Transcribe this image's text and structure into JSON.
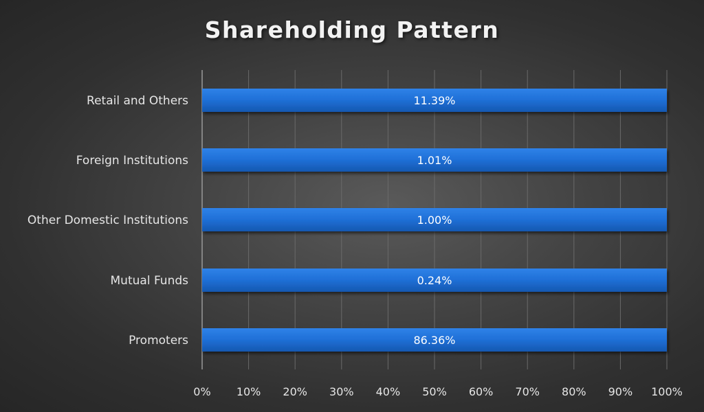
{
  "chart_data": {
    "type": "bar",
    "orientation": "horizontal",
    "stacked": "100%",
    "title": "Shareholding Pattern",
    "categories": [
      "Promoters",
      "Mutual Funds",
      "Other Domestic Institutions",
      "Foreign Institutions",
      "Retail and Others"
    ],
    "values": [
      86.36,
      0.24,
      1.0,
      1.01,
      11.39
    ],
    "data_labels": [
      "86.36%",
      "0.24%",
      "1.00%",
      "1.01%",
      "11.39%"
    ],
    "xlim": [
      0,
      100
    ],
    "x_ticks": [
      "0%",
      "10%",
      "20%",
      "30%",
      "40%",
      "50%",
      "60%",
      "70%",
      "80%",
      "90%",
      "100%"
    ],
    "xlabel": "",
    "ylabel": "",
    "grid": "vertical",
    "legend": "none",
    "colors": {
      "bar": "#1f6fd6",
      "bar_dark": "#1558b0",
      "grid": "#6a6a6a",
      "text": "#e6e6e6"
    }
  }
}
